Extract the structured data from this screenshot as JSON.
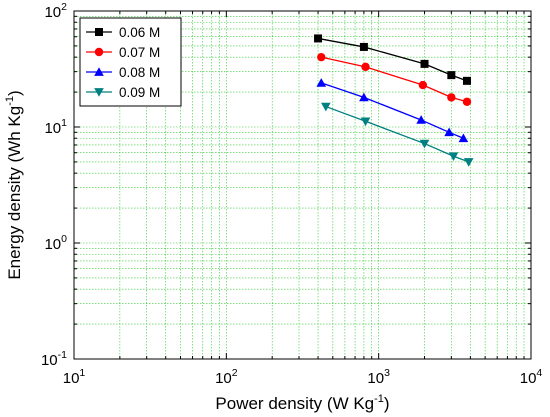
{
  "chart_data": {
    "type": "line",
    "title": "",
    "xlabel": {
      "main": "Power density (W Kg",
      "sup": "-1",
      "end": ")"
    },
    "ylabel": {
      "main": "Energy density (Wh Kg",
      "sup": "-1",
      "end": ")"
    },
    "x_scale": "log",
    "y_scale": "log",
    "xlim": [
      10,
      10000
    ],
    "ylim": [
      0.1,
      100
    ],
    "x_ticks": [
      {
        "value": 10,
        "base": "10",
        "exp": "1"
      },
      {
        "value": 100,
        "base": "10",
        "exp": "2"
      },
      {
        "value": 1000,
        "base": "10",
        "exp": "3"
      },
      {
        "value": 10000,
        "base": "10",
        "exp": "4"
      }
    ],
    "y_ticks": [
      {
        "value": 0.1,
        "base": "10",
        "exp": "-1"
      },
      {
        "value": 1,
        "base": "10",
        "exp": "0"
      },
      {
        "value": 10,
        "base": "10",
        "exp": "1"
      },
      {
        "value": 100,
        "base": "10",
        "exp": "2"
      }
    ],
    "grid": true,
    "grid_color": "#33cc33",
    "legend_position": "top-left",
    "series": [
      {
        "name": "0.06 M",
        "color": "#000000",
        "marker": "square",
        "x": [
          400,
          800,
          2000,
          3000,
          3800
        ],
        "y": [
          58,
          49,
          35,
          28,
          25
        ]
      },
      {
        "name": "0.07 M",
        "color": "#ff0000",
        "marker": "circle",
        "x": [
          420,
          820,
          1950,
          3000,
          3800
        ],
        "y": [
          40,
          33,
          23,
          18,
          16.5
        ]
      },
      {
        "name": "0.08 M",
        "color": "#0000ff",
        "marker": "triangle-up",
        "x": [
          420,
          800,
          1900,
          2900,
          3600
        ],
        "y": [
          24,
          18,
          11.5,
          9,
          8
        ]
      },
      {
        "name": "0.09 M",
        "color": "#008080",
        "marker": "triangle-down",
        "x": [
          450,
          820,
          2000,
          3100,
          3900
        ],
        "y": [
          15,
          11.2,
          7.2,
          5.6,
          5
        ]
      }
    ]
  }
}
